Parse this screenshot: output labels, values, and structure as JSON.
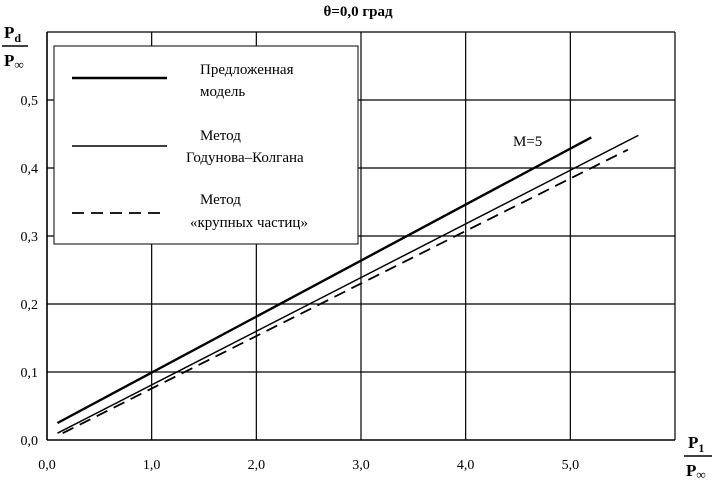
{
  "chart_data": {
    "type": "line",
    "title": "θ=0,0 град",
    "ylabel": {
      "num": "P",
      "num_sub": "d",
      "den": "P",
      "den_sub": "∞"
    },
    "xlabel": {
      "num": "P",
      "num_sub": "1",
      "den": "P",
      "den_sub": "∞"
    },
    "xlim": [
      0.0,
      6.0
    ],
    "ylim": [
      0.0,
      0.6
    ],
    "grid": true,
    "x_tick_labels": [
      "0,0",
      "1,0",
      "2,0",
      "3,0",
      "4,0",
      "5,0"
    ],
    "y_tick_labels": [
      "0,0",
      "0,1",
      "0,2",
      "0,3",
      "0,4",
      "0,5"
    ],
    "annotation": "M=5",
    "legend_position": "top-left",
    "legend": [
      {
        "line1": "Предложенная",
        "line2": "модель",
        "style": "solid-thick"
      },
      {
        "line1": "Метод",
        "line2": "Годунова–Колгана",
        "style": "solid"
      },
      {
        "line1": "Метод",
        "line2": "«крупных частиц»",
        "style": "dashed"
      }
    ],
    "series": [
      {
        "style": "solid-thick",
        "x": [
          0.1,
          5.2
        ],
        "y": [
          0.025,
          0.445
        ]
      },
      {
        "style": "solid",
        "x": [
          0.1,
          5.65
        ],
        "y": [
          0.01,
          0.448
        ]
      },
      {
        "style": "dashed",
        "x": [
          0.15,
          5.55
        ],
        "y": [
          0.01,
          0.427
        ]
      }
    ]
  }
}
